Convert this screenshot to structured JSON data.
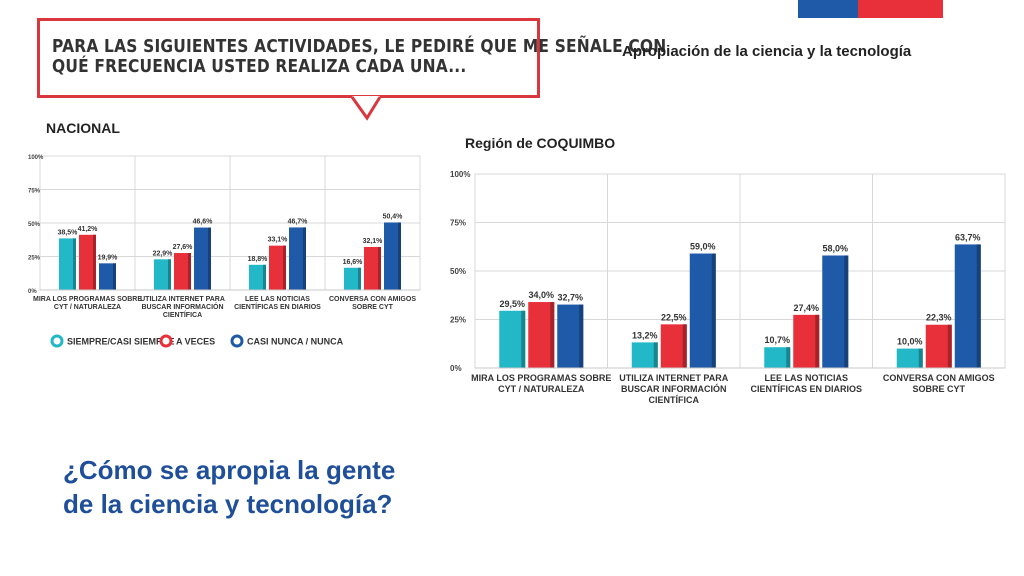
{
  "header": {
    "bubble_line1": "Para las siguientes actividades, le pediré que me señale con",
    "bubble_line2": "qué frecuencia usted realiza cada una...",
    "slide_title": "Apropiación de la ciencia y la tecnología",
    "nacional_label": "NACIONAL",
    "region_label": "Región de COQUIMBO"
  },
  "question": {
    "line1": "¿Cómo se apropia la gente",
    "line2": "de la ciencia y tecnología?"
  },
  "colors": {
    "teal": "#22b8c8",
    "red": "#e8303a",
    "blue": "#1f5aa8",
    "accent": "#1f4f99"
  },
  "chart_data": [
    {
      "type": "bar",
      "title": "NACIONAL",
      "ylim": [
        0,
        100
      ],
      "yticks": [
        "100%",
        "75%",
        "50%",
        "25%",
        "0%"
      ],
      "categories": [
        [
          "MIRA LOS PROGRAMAS SOBRE",
          "CYT / NATURALEZA"
        ],
        [
          "UTILIZA INTERNET PARA",
          "BUSCAR INFORMACIÓN",
          "CIENTÍFICA"
        ],
        [
          "LEE LAS NOTICIAS",
          "CIENTÍFICAS EN DIARIOS"
        ],
        [
          "CONVERSA CON AMIGOS",
          "SOBRE CYT"
        ]
      ],
      "series": [
        {
          "name": "SIEMPRE/CASI SIEMPRE",
          "values": [
            38.5,
            22.9,
            18.8,
            16.6
          ],
          "labels": [
            "38,5%",
            "22,9%",
            "18,8%",
            "16,6%"
          ]
        },
        {
          "name": "A VECES",
          "values": [
            41.2,
            27.6,
            33.1,
            32.1
          ],
          "labels": [
            "41,2%",
            "27,6%",
            "33,1%",
            "32,1%"
          ]
        },
        {
          "name": "CASI NUNCA / NUNCA",
          "values": [
            19.9,
            46.6,
            46.7,
            50.4
          ],
          "labels": [
            "19,9%",
            "46,6%",
            "46,7%",
            "50,4%"
          ]
        }
      ],
      "grid": true,
      "legend": "bottom"
    },
    {
      "type": "bar",
      "title": "Región de COQUIMBO",
      "ylim": [
        0,
        100
      ],
      "yticks": [
        "100%",
        "75%",
        "50%",
        "25%",
        "0%"
      ],
      "categories": [
        [
          "MIRA LOS PROGRAMAS SOBRE",
          "CYT / NATURALEZA"
        ],
        [
          "UTILIZA INTERNET PARA",
          "BUSCAR INFORMACIÓN",
          "CIENTÍFICA"
        ],
        [
          "LEE LAS NOTICIAS",
          "CIENTÍFICAS EN DIARIOS"
        ],
        [
          "CONVERSA CON AMIGOS",
          "SOBRE CYT"
        ]
      ],
      "series": [
        {
          "values": [
            29.5,
            13.2,
            10.7,
            10.0
          ],
          "labels": [
            "29,5%",
            "13,2%",
            "10,7%",
            "10,0%"
          ]
        },
        {
          "values": [
            34.0,
            22.5,
            27.4,
            22.3
          ],
          "labels": [
            "34,0%",
            "22,5%",
            "27,4%",
            "22,3%"
          ]
        },
        {
          "values": [
            32.7,
            59.0,
            58.0,
            63.7
          ],
          "labels": [
            "32,7%",
            "59,0%",
            "58,0%",
            "63,7%"
          ]
        }
      ],
      "grid": true,
      "legend": "none"
    }
  ]
}
